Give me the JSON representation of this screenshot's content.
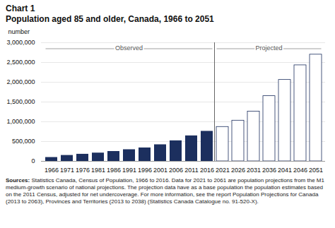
{
  "chart_data": {
    "type": "bar",
    "title": "Chart 1",
    "subtitle": "Population aged 85 and older, Canada, 1966 to 2051",
    "ylabel": "number",
    "categories": [
      "1966",
      "1971",
      "1976",
      "1981",
      "1986",
      "1991",
      "1996",
      "2001",
      "2006",
      "2011",
      "2016",
      "2021",
      "2026",
      "2031",
      "2036",
      "2041",
      "2046",
      "2051"
    ],
    "series": [
      {
        "name": "Observed",
        "color": "#1c2f5e",
        "values": [
          98000,
          150000,
          180000,
          210000,
          250000,
          295000,
          340000,
          420000,
          520000,
          645000,
          760000,
          null,
          null,
          null,
          null,
          null,
          null,
          null
        ]
      },
      {
        "name": "Projected",
        "color": "#1c2f5e",
        "values": [
          null,
          null,
          null,
          null,
          null,
          null,
          null,
          null,
          null,
          null,
          null,
          870000,
          1030000,
          1260000,
          1650000,
          2060000,
          2430000,
          2700000
        ]
      }
    ],
    "ylim": [
      0,
      3000000
    ],
    "yticks": [
      0,
      {
        "value": 500000,
        "label": "500,000"
      },
      {
        "value": 1000000,
        "label": "1,000,000"
      },
      {
        "value": 1500000,
        "label": "1,500,000"
      },
      {
        "value": 2000000,
        "label": "2,000,000"
      },
      {
        "value": 2500000,
        "label": "2,500,000"
      },
      {
        "value": 3000000,
        "label": "3,000,000"
      }
    ],
    "grid": true,
    "caption": "Sources: Statistics Canada, Census of Population, 1966 to 2016. Data for 2021 to 2061 are population projections from the M1 medium-growth scenario of national projections. The projection data have as a base population the population estimates based on the 2011 Census, adjusted for net undercoverage. For more information, see the report Population Projections for Canada (2013 to 2063), Provinces and Territories (2013 to 2038) (Statistics Canada Catalogue no. 91-520-X)."
  }
}
